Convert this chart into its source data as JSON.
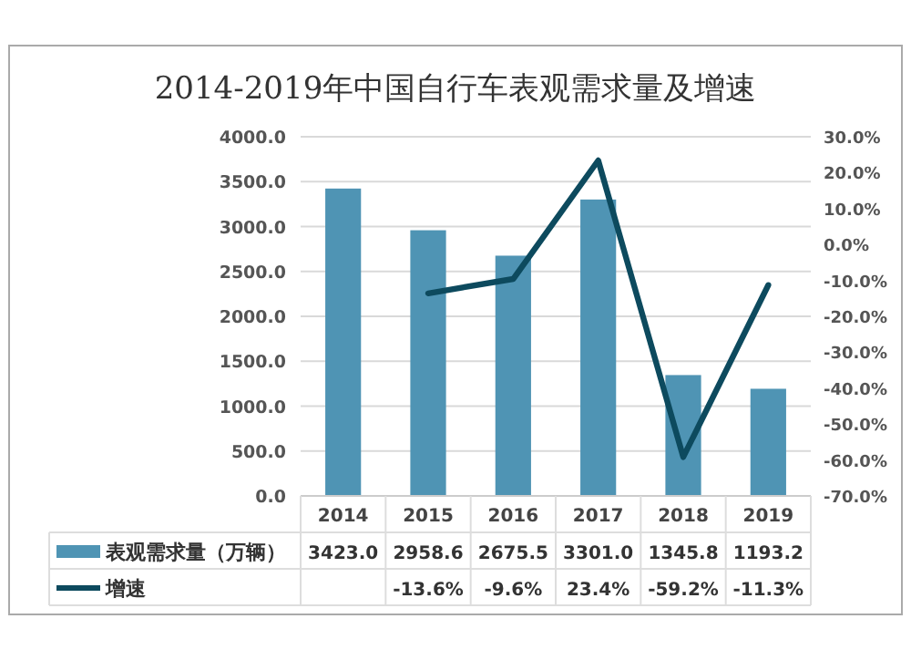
{
  "chart_data": {
    "type": "bar",
    "title": "2014-2019年中国自行车表观需求量及增速",
    "categories": [
      "2014",
      "2015",
      "2016",
      "2017",
      "2018",
      "2019"
    ],
    "series": [
      {
        "name": "表观需求量（万辆）",
        "color": "#4f94b4",
        "values": [
          3423.0,
          2958.6,
          2675.5,
          3301.0,
          1345.8,
          1193.2
        ],
        "value_labels": [
          "3423.0",
          "2958.6",
          "2675.5",
          "3301.0",
          "1345.8",
          "1193.2"
        ]
      },
      {
        "name": "增速",
        "type": "line",
        "axis": "y2",
        "color": "#0d4a5e",
        "values": [
          null,
          -13.6,
          -9.6,
          23.4,
          -59.2,
          -11.3
        ],
        "value_labels": [
          null,
          "-13.6%",
          "-9.6%",
          "23.4%",
          "-59.2%",
          "-11.3%"
        ]
      }
    ],
    "ylim": [
      0,
      4000
    ],
    "yticks": [
      {
        "value": 0,
        "label": "0.0"
      },
      {
        "value": 500,
        "label": "500.0"
      },
      {
        "value": 1000,
        "label": "1000.0"
      },
      {
        "value": 1500,
        "label": "1500.0"
      },
      {
        "value": 2000,
        "label": "2000.0"
      },
      {
        "value": 2500,
        "label": "2500.0"
      },
      {
        "value": 3000,
        "label": "3000.0"
      },
      {
        "value": 3500,
        "label": "3500.0"
      },
      {
        "value": 4000,
        "label": "4000.0"
      }
    ],
    "y2lim": [
      -70,
      30
    ],
    "y2ticks": [
      {
        "value": -70,
        "label": "-70.0%"
      },
      {
        "value": -60,
        "label": "-60.0%"
      },
      {
        "value": -50,
        "label": "-50.0%"
      },
      {
        "value": -40,
        "label": "-40.0%"
      },
      {
        "value": -30,
        "label": "-30.0%"
      },
      {
        "value": -20,
        "label": "-20.0%"
      },
      {
        "value": -10,
        "label": "-10.0%"
      },
      {
        "value": 0,
        "label": "0.0%"
      },
      {
        "value": 10,
        "label": "10.0%"
      },
      {
        "value": 20,
        "label": "20.0%"
      },
      {
        "value": 30,
        "label": "30.0%"
      }
    ],
    "grid": "y",
    "legend": "bottom"
  }
}
